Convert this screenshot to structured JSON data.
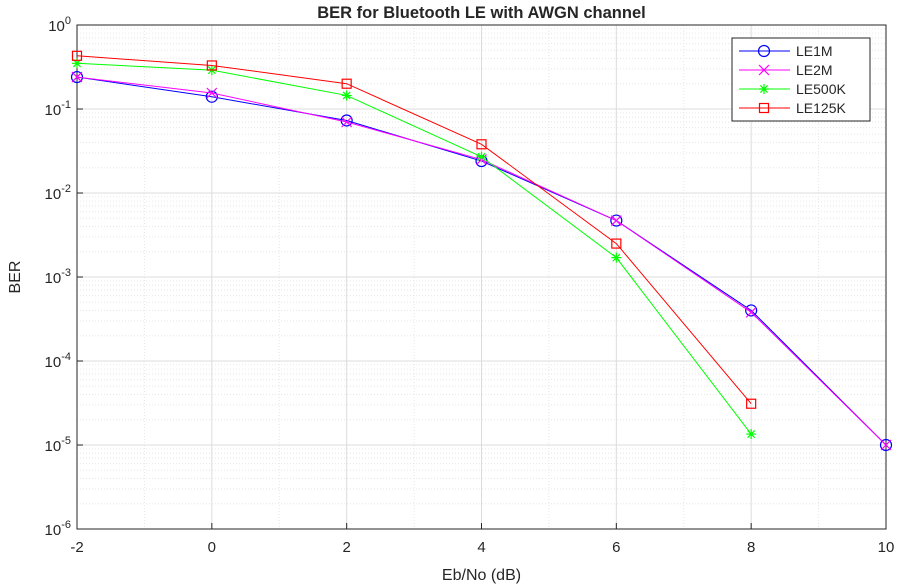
{
  "chart_data": {
    "type": "line",
    "title": "BER for Bluetooth LE with AWGN channel",
    "xlabel": "Eb/No (dB)",
    "ylabel": "BER",
    "xlim": [
      -2,
      10
    ],
    "ylim": [
      1e-06,
      1
    ],
    "yscale": "log",
    "grid": true,
    "minor_grid": true,
    "legend_position": "top-right",
    "x_ticks": [
      {
        "value": -2,
        "label": "-2"
      },
      {
        "value": 0,
        "label": "0"
      },
      {
        "value": 2,
        "label": "2"
      },
      {
        "value": 4,
        "label": "4"
      },
      {
        "value": 6,
        "label": "6"
      },
      {
        "value": 8,
        "label": "8"
      },
      {
        "value": 10,
        "label": "10"
      }
    ],
    "y_ticks": [
      {
        "value": 1,
        "base": "10",
        "exp": "0"
      },
      {
        "value": 0.1,
        "base": "10",
        "exp": "-1"
      },
      {
        "value": 0.01,
        "base": "10",
        "exp": "-2"
      },
      {
        "value": 0.001,
        "base": "10",
        "exp": "-3"
      },
      {
        "value": 0.0001,
        "base": "10",
        "exp": "-4"
      },
      {
        "value": 1e-05,
        "base": "10",
        "exp": "-5"
      },
      {
        "value": 1e-06,
        "base": "10",
        "exp": "-6"
      }
    ],
    "series": [
      {
        "name": "LE1M",
        "color": "#0000ff",
        "marker": "circle",
        "x": [
          -2,
          0,
          2,
          4,
          6,
          8,
          10
        ],
        "y": [
          0.24,
          0.14,
          0.073,
          0.024,
          0.0047,
          0.0004,
          1e-05
        ]
      },
      {
        "name": "LE2M",
        "color": "#ff00ff",
        "marker": "x",
        "x": [
          -2,
          0,
          2,
          4,
          6,
          8,
          10
        ],
        "y": [
          0.24,
          0.155,
          0.07,
          0.025,
          0.0047,
          0.00038,
          1e-05
        ]
      },
      {
        "name": "LE500K",
        "color": "#00ff00",
        "marker": "asterisk",
        "x": [
          -2,
          0,
          2,
          4,
          6,
          8
        ],
        "y": [
          0.35,
          0.29,
          0.145,
          0.027,
          0.0017,
          1.35e-05
        ]
      },
      {
        "name": "LE125K",
        "color": "#ff0000",
        "marker": "square",
        "x": [
          -2,
          0,
          2,
          4,
          6,
          8
        ],
        "y": [
          0.43,
          0.33,
          0.2,
          0.038,
          0.0025,
          3.1e-05
        ]
      }
    ]
  }
}
